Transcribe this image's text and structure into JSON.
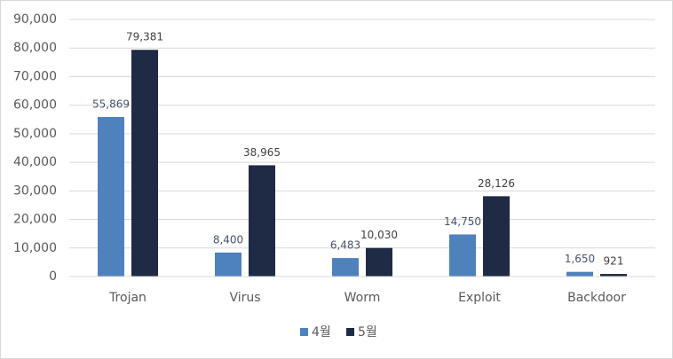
{
  "chart_data": {
    "type": "bar",
    "categories": [
      "Trojan",
      "Virus",
      "Worm",
      "Exploit",
      "Backdoor"
    ],
    "series": [
      {
        "name": "4월",
        "color": "#4f81bd",
        "values": [
          55869,
          8400,
          6483,
          14750,
          1650
        ],
        "value_labels": [
          "55,869",
          "8,400",
          "6,483",
          "14,750",
          "1,650"
        ]
      },
      {
        "name": "5월",
        "color": "#1f2b45",
        "values": [
          79381,
          38965,
          10030,
          28126,
          921
        ],
        "value_labels": [
          "79,381",
          "38,965",
          "10,030",
          "28,126",
          "921"
        ]
      }
    ],
    "ylim": [
      0,
      90000
    ],
    "yticks": [
      0,
      {
        "value": 10000,
        "label": "10,000"
      },
      {
        "value": 20000,
        "label": "20,000"
      },
      {
        "value": 30000,
        "label": "30,000"
      },
      {
        "value": 40000,
        "label": "40,000"
      },
      {
        "value": 50000,
        "label": "50,000"
      },
      {
        "value": 60000,
        "label": "60,000"
      },
      {
        "value": 70000,
        "label": "70,000"
      },
      {
        "value": 80000,
        "label": "80,000"
      },
      {
        "value": 90000,
        "label": "90,000"
      }
    ],
    "grid": true,
    "legend": "bottom"
  }
}
